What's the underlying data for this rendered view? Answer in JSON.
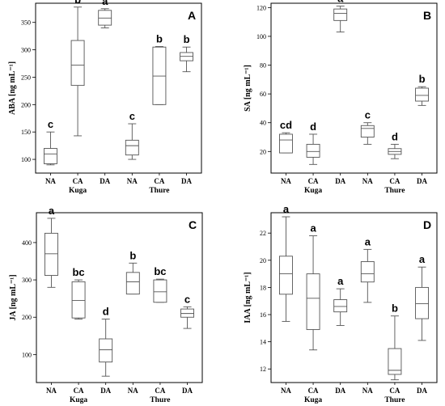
{
  "chart_data": [
    {
      "type": "box",
      "panel_label": "A",
      "ylabel": "ABA [ng mL⁻¹]",
      "yticks": [
        100,
        150,
        200,
        250,
        300,
        350
      ],
      "ylim": [
        75,
        385
      ],
      "categories": [
        "NA",
        "CA",
        "DA",
        "NA",
        "CA",
        "DA"
      ],
      "groups": [
        "Kuga",
        "Thure"
      ],
      "boxes": [
        {
          "min": 90,
          "q1": 92,
          "median": 110,
          "q3": 120,
          "max": 150,
          "letter": "c"
        },
        {
          "min": 143,
          "q1": 235,
          "median": 272,
          "q3": 317,
          "max": 378,
          "letter": "b"
        },
        {
          "min": 340,
          "q1": 345,
          "median": 358,
          "q3": 372,
          "max": 375,
          "letter": "a"
        },
        {
          "min": 100,
          "q1": 108,
          "median": 125,
          "q3": 135,
          "max": 165,
          "letter": "c"
        },
        {
          "min": 200,
          "q1": 200,
          "median": 252,
          "q3": 305,
          "max": 306,
          "letter": "b"
        },
        {
          "min": 260,
          "q1": 280,
          "median": 288,
          "q3": 295,
          "max": 305,
          "letter": "b"
        }
      ]
    },
    {
      "type": "box",
      "panel_label": "B",
      "ylabel": "SA [ng mL⁻¹]",
      "yticks": [
        20,
        40,
        60,
        80,
        100,
        120
      ],
      "ylim": [
        5,
        123
      ],
      "categories": [
        "NA",
        "CA",
        "DA",
        "NA",
        "CA",
        "DA"
      ],
      "groups": [
        "Kuga",
        "Thure"
      ],
      "boxes": [
        {
          "min": 19,
          "q1": 19,
          "median": 28,
          "q3": 32,
          "max": 33,
          "letter": "cd"
        },
        {
          "min": 11,
          "q1": 16,
          "median": 20,
          "q3": 25,
          "max": 32,
          "letter": "d"
        },
        {
          "min": 103,
          "q1": 111,
          "median": 116,
          "q3": 119,
          "max": 121,
          "letter": "a"
        },
        {
          "min": 25,
          "q1": 30,
          "median": 36,
          "q3": 38,
          "max": 40,
          "letter": "c"
        },
        {
          "min": 15,
          "q1": 18,
          "median": 20,
          "q3": 22,
          "max": 25,
          "letter": "d"
        },
        {
          "min": 52,
          "q1": 55,
          "median": 59,
          "q3": 64,
          "max": 65,
          "letter": "b"
        }
      ]
    },
    {
      "type": "box",
      "panel_label": "C",
      "ylabel": "JA [ng mL⁻¹]",
      "yticks": [
        100,
        200,
        300,
        400
      ],
      "ylim": [
        25,
        480
      ],
      "categories": [
        "NA",
        "CA",
        "DA",
        "NA",
        "CA",
        "DA"
      ],
      "groups": [
        "Kuga",
        "Thure"
      ],
      "boxes": [
        {
          "min": 280,
          "q1": 312,
          "median": 370,
          "q3": 425,
          "max": 465,
          "letter": "a"
        },
        {
          "min": 195,
          "q1": 198,
          "median": 245,
          "q3": 295,
          "max": 300,
          "letter": "bc"
        },
        {
          "min": 42,
          "q1": 80,
          "median": 113,
          "q3": 142,
          "max": 195,
          "letter": "d"
        },
        {
          "min": 262,
          "q1": 262,
          "median": 295,
          "q3": 320,
          "max": 345,
          "letter": "b"
        },
        {
          "min": 240,
          "q1": 240,
          "median": 268,
          "q3": 300,
          "max": 302,
          "letter": "bc"
        },
        {
          "min": 170,
          "q1": 200,
          "median": 210,
          "q3": 222,
          "max": 228,
          "letter": "c"
        }
      ]
    },
    {
      "type": "box",
      "panel_label": "D",
      "ylabel": "IAA [ng mL⁻¹]",
      "yticks": [
        12,
        14,
        16,
        18,
        20,
        22
      ],
      "ylim": [
        11,
        23.5
      ],
      "categories": [
        "NA",
        "CA",
        "DA",
        "NA",
        "CA",
        "DA"
      ],
      "groups": [
        "Kuga",
        "Thure"
      ],
      "boxes": [
        {
          "min": 15.5,
          "q1": 17.5,
          "median": 19.0,
          "q3": 20.3,
          "max": 23.2,
          "letter": "a"
        },
        {
          "min": 13.4,
          "q1": 14.9,
          "median": 17.2,
          "q3": 19.0,
          "max": 21.8,
          "letter": "a"
        },
        {
          "min": 15.2,
          "q1": 16.2,
          "median": 16.6,
          "q3": 17.1,
          "max": 17.9,
          "letter": "a"
        },
        {
          "min": 16.9,
          "q1": 18.4,
          "median": 19.0,
          "q3": 19.9,
          "max": 20.8,
          "letter": "a"
        },
        {
          "min": 11.2,
          "q1": 11.6,
          "median": 11.9,
          "q3": 13.5,
          "max": 15.9,
          "letter": "b"
        },
        {
          "min": 14.1,
          "q1": 15.7,
          "median": 16.8,
          "q3": 18.0,
          "max": 19.5,
          "letter": "a"
        }
      ]
    }
  ]
}
